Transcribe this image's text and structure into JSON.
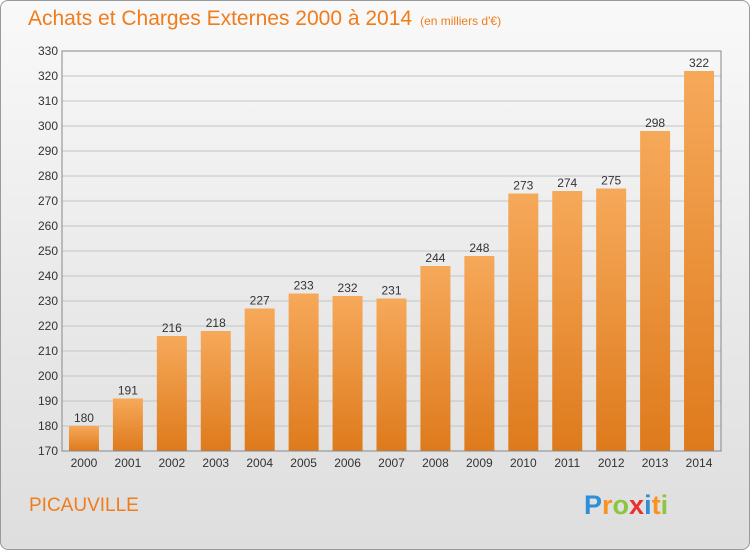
{
  "title": "Achats et Charges Externes 2000 à 2014",
  "subtitle": "(en milliers d'€)",
  "place": "PICAUVILLE",
  "logo": {
    "letters": [
      "P",
      "r",
      "o",
      "x",
      "i",
      "t",
      "i"
    ],
    "colors": [
      "#2e8fd8",
      "#f7931e",
      "#8cc63f",
      "#e9302e",
      "#2e8fd8",
      "#f7931e",
      "#8cc63f"
    ]
  },
  "colors": {
    "bar_light": "#f6a95a",
    "bar_dark": "#de7a1c",
    "accent": "#f07c1c"
  },
  "chart_data": {
    "type": "bar",
    "title": "Achats et Charges Externes 2000 à 2014",
    "subtitle": "(en milliers d'€)",
    "xlabel": "",
    "ylabel": "",
    "categories": [
      "2000",
      "2001",
      "2002",
      "2003",
      "2004",
      "2005",
      "2006",
      "2007",
      "2008",
      "2009",
      "2010",
      "2011",
      "2012",
      "2013",
      "2014"
    ],
    "values": [
      180,
      191,
      216,
      218,
      227,
      233,
      232,
      231,
      244,
      248,
      273,
      274,
      275,
      298,
      322
    ],
    "ylim": [
      170,
      330
    ],
    "yticks": [
      170,
      180,
      190,
      200,
      210,
      220,
      230,
      240,
      250,
      260,
      270,
      280,
      290,
      300,
      310,
      320,
      330
    ],
    "grid": true,
    "legend": "none"
  }
}
